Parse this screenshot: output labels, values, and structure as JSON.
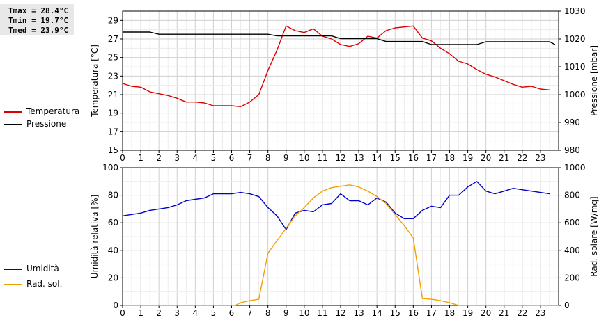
{
  "stats": {
    "tmax": "Tmax = 28.4°C",
    "tmin": "Tmin = 19.7°C",
    "tmed": "Tmed = 23.9°C"
  },
  "legends": {
    "top": [
      {
        "label": "Temperatura",
        "color": "#dd0000"
      },
      {
        "label": "Pressione",
        "color": "#000000"
      }
    ],
    "bottom": [
      {
        "label": "Umidità",
        "color": "#0000cc"
      },
      {
        "label": "Rad. sol.",
        "color": "#f0a000"
      }
    ]
  },
  "chart_data": [
    {
      "type": "line",
      "x_ticks": [
        "0",
        "1",
        "2",
        "3",
        "4",
        "5",
        "6",
        "7",
        "8",
        "9",
        "10",
        "11",
        "12",
        "13",
        "14",
        "15",
        "16",
        "17",
        "18",
        "19",
        "20",
        "21",
        "22",
        "23"
      ],
      "xlim": [
        0,
        24
      ],
      "ylabel": "Temperatura [°C]",
      "ylabel_right": "Pressione [mbar]",
      "ylim": [
        15,
        30
      ],
      "yticks": [
        "15",
        "17",
        "19",
        "21",
        "23",
        "25",
        "27",
        "29"
      ],
      "y2lim": [
        980,
        1030
      ],
      "y2ticks": [
        "980",
        "990",
        "1000",
        "1010",
        "1020",
        "1030"
      ],
      "grid": true,
      "series": [
        {
          "name": "Temperatura",
          "axis": "left",
          "color": "#dd0000",
          "x": [
            0,
            0.5,
            1,
            1.5,
            2,
            2.5,
            3,
            3.5,
            4,
            4.5,
            5,
            5.5,
            6,
            6.5,
            7,
            7.5,
            8,
            8.5,
            9,
            9.5,
            10,
            10.5,
            11,
            11.5,
            12,
            12.5,
            13,
            13.5,
            14,
            14.5,
            15,
            15.5,
            16,
            16.5,
            17,
            17.5,
            18,
            18.5,
            19,
            19.5,
            20,
            20.5,
            21,
            21.5,
            22,
            22.5,
            23,
            23.5
          ],
          "y": [
            22.2,
            21.9,
            21.8,
            21.3,
            21.1,
            20.9,
            20.6,
            20.2,
            20.2,
            20.1,
            19.8,
            19.8,
            19.8,
            19.7,
            20.2,
            21.0,
            23.6,
            25.8,
            28.4,
            27.9,
            27.7,
            28.1,
            27.3,
            27.0,
            26.4,
            26.2,
            26.5,
            27.3,
            27.1,
            27.9,
            28.2,
            28.3,
            28.4,
            27.1,
            26.8,
            26.0,
            25.4,
            24.6,
            24.3,
            23.7,
            23.2,
            22.9,
            22.5,
            22.1,
            21.8,
            21.9,
            21.6,
            21.5
          ]
        },
        {
          "name": "Pressione",
          "axis": "right",
          "color": "#000000",
          "x": [
            0,
            1.5,
            2,
            8,
            8.5,
            11.5,
            12,
            14,
            14.5,
            16.5,
            17,
            19.5,
            20,
            23.5,
            23.8
          ],
          "y": [
            1022.5,
            1022.5,
            1021.7,
            1021.7,
            1021.1,
            1021.1,
            1020.1,
            1020.1,
            1019.1,
            1019.1,
            1018.0,
            1018.0,
            1019.0,
            1019.0,
            1018.0
          ]
        }
      ]
    },
    {
      "type": "line",
      "x_ticks": [
        "0",
        "1",
        "2",
        "3",
        "4",
        "5",
        "6",
        "7",
        "8",
        "9",
        "10",
        "11",
        "12",
        "13",
        "14",
        "15",
        "16",
        "17",
        "18",
        "19",
        "20",
        "21",
        "22",
        "23"
      ],
      "xlim": [
        0,
        24
      ],
      "ylabel": "Umidità relativa [%]",
      "ylabel_right": "Rad. solare [W/mq]",
      "ylim": [
        0,
        100
      ],
      "yticks": [
        "0",
        "20",
        "40",
        "60",
        "80",
        "100"
      ],
      "y2lim": [
        0,
        1000
      ],
      "y2ticks": [
        "0",
        "200",
        "400",
        "600",
        "800",
        "1000"
      ],
      "grid": true,
      "series": [
        {
          "name": "Umidità",
          "axis": "left",
          "color": "#0000cc",
          "x": [
            0,
            0.5,
            1,
            1.5,
            2,
            2.5,
            3,
            3.5,
            4,
            4.5,
            5,
            5.5,
            6,
            6.5,
            7,
            7.5,
            8,
            8.5,
            9,
            9.5,
            10,
            10.5,
            11,
            11.5,
            12,
            12.5,
            13,
            13.5,
            14,
            14.5,
            15,
            15.5,
            16,
            16.5,
            17,
            17.5,
            18,
            18.5,
            19,
            19.5,
            20,
            20.5,
            21,
            21.5,
            22,
            22.5,
            23,
            23.5
          ],
          "y": [
            65,
            66,
            67,
            69,
            70,
            71,
            73,
            76,
            77,
            78,
            81,
            81,
            81,
            82,
            81,
            79,
            71,
            65,
            55,
            67,
            69,
            68,
            73,
            74,
            81,
            76,
            76,
            73,
            78,
            75,
            67,
            63,
            63,
            69,
            72,
            71,
            80,
            80,
            86,
            90,
            83,
            81,
            83,
            85,
            84,
            83,
            82,
            81
          ]
        },
        {
          "name": "Rad. sol.",
          "axis": "right",
          "color": "#f0a000",
          "x": [
            0,
            6.2,
            6.5,
            7,
            7.5,
            8,
            8.5,
            9,
            9.5,
            10,
            10.5,
            11,
            11.5,
            12,
            12.5,
            13,
            13.5,
            14,
            14.5,
            15,
            15.5,
            16,
            16.5,
            17,
            17.5,
            18,
            18.5,
            19,
            24
          ],
          "y": [
            0,
            0,
            20,
            35,
            45,
            380,
            470,
            560,
            650,
            710,
            780,
            830,
            855,
            865,
            875,
            860,
            830,
            790,
            740,
            660,
            580,
            490,
            50,
            45,
            35,
            20,
            0,
            0,
            0
          ]
        }
      ]
    }
  ]
}
